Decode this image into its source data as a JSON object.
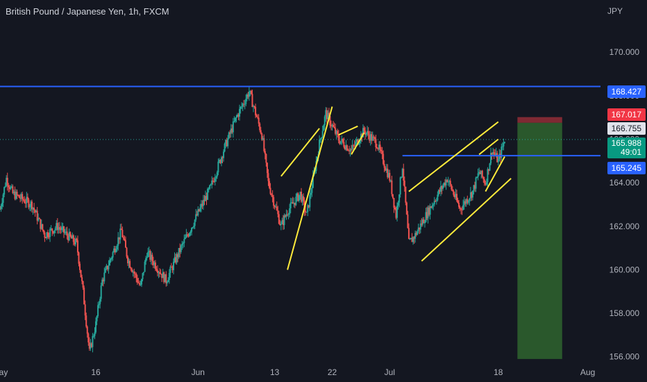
{
  "header": {
    "title": "British Pound / Japanese Yen, 1h, FXCM",
    "currency": "JPY"
  },
  "price_tags": {
    "resistance": "168.427",
    "stop": "167.017",
    "entry": "166.755",
    "last": "165.988",
    "countdown": "49:01",
    "support": "165.245"
  },
  "colors": {
    "background": "#141721",
    "bull": "#26a69a",
    "bear": "#ef5350",
    "pattern": "#ffeb3b",
    "level": "#2962ff",
    "target_zone": "#2c5f2e",
    "stop_zone": "#8b2b35"
  },
  "chart_data": {
    "type": "candlestick",
    "symbol": "British Pound / Japanese Yen",
    "interval": "1h",
    "source": "FXCM",
    "y_axis": {
      "unit": "JPY",
      "ticks": [
        "156.000",
        "158.000",
        "160.000",
        "162.000",
        "164.000",
        "166.000",
        "168.000",
        "170.000"
      ],
      "ylim": [
        155.8,
        172.4
      ]
    },
    "x_axis": {
      "ticks": [
        "May",
        "16",
        "Jun",
        "13",
        "22",
        "Jul",
        "18",
        "Aug"
      ],
      "xlim": [
        "2024-05-01",
        "2024-08-03"
      ]
    },
    "price_path": [
      [
        "2024-05-01",
        162.8
      ],
      [
        "2024-05-02",
        164.2
      ],
      [
        "2024-05-03",
        163.5
      ],
      [
        "2024-05-06",
        163.0
      ],
      [
        "2024-05-08",
        161.6
      ],
      [
        "2024-05-10",
        162.0
      ],
      [
        "2024-05-13",
        161.2
      ],
      [
        "2024-05-14",
        159.0
      ],
      [
        "2024-05-15",
        156.2
      ],
      [
        "2024-05-16",
        157.5
      ],
      [
        "2024-05-17",
        159.5
      ],
      [
        "2024-05-20",
        161.8
      ],
      [
        "2024-05-21",
        160.5
      ],
      [
        "2024-05-23",
        159.2
      ],
      [
        "2024-05-24",
        160.8
      ],
      [
        "2024-05-27",
        159.5
      ],
      [
        "2024-05-29",
        160.8
      ],
      [
        "2024-05-31",
        162.0
      ],
      [
        "2024-06-03",
        163.8
      ],
      [
        "2024-06-05",
        165.5
      ],
      [
        "2024-06-07",
        167.0
      ],
      [
        "2024-06-09",
        168.2
      ],
      [
        "2024-06-10",
        167.2
      ],
      [
        "2024-06-11",
        166.2
      ],
      [
        "2024-06-12",
        164.0
      ],
      [
        "2024-06-14",
        162.0
      ],
      [
        "2024-06-15",
        162.7
      ],
      [
        "2024-06-17",
        163.5
      ],
      [
        "2024-06-18",
        162.5
      ],
      [
        "2024-06-20",
        165.8
      ],
      [
        "2024-06-21",
        167.2
      ],
      [
        "2024-06-23",
        166.0
      ],
      [
        "2024-06-25",
        165.5
      ],
      [
        "2024-06-27",
        166.4
      ],
      [
        "2024-06-29",
        165.8
      ],
      [
        "2024-07-01",
        164.2
      ],
      [
        "2024-07-02",
        162.5
      ],
      [
        "2024-07-03",
        164.8
      ],
      [
        "2024-07-04",
        161.2
      ],
      [
        "2024-07-05",
        161.6
      ],
      [
        "2024-07-08",
        163.2
      ],
      [
        "2024-07-10",
        164.2
      ],
      [
        "2024-07-12",
        162.8
      ],
      [
        "2024-07-14",
        163.6
      ],
      [
        "2024-07-15",
        164.5
      ],
      [
        "2024-07-16",
        164.0
      ],
      [
        "2024-07-17",
        165.5
      ],
      [
        "2024-07-18",
        165.0
      ],
      [
        "2024-07-19",
        165.988
      ]
    ],
    "horizontal_levels": [
      {
        "price": 168.427,
        "label": "168.427"
      },
      {
        "price": 165.245,
        "label": "165.245",
        "from": "2024-07-03"
      }
    ],
    "current_price": {
      "price": 165.988,
      "label": "165.988",
      "countdown": "49:01"
    },
    "patterns": [
      {
        "type": "rising-wedge",
        "lines": [
          {
            "from": [
              "2024-06-14",
              164.3
            ],
            "to": [
              "2024-06-20",
              166.5
            ]
          },
          {
            "from": [
              "2024-06-15",
              160.0
            ],
            "to": [
              "2024-06-22",
              167.5
            ]
          }
        ]
      },
      {
        "type": "rising-wedge",
        "lines": [
          {
            "from": [
              "2024-06-23",
              166.2
            ],
            "to": [
              "2024-06-26",
              166.6
            ]
          },
          {
            "from": [
              "2024-06-25",
              165.3
            ],
            "to": [
              "2024-06-27",
              166.3
            ]
          }
        ]
      },
      {
        "type": "rising-wedge",
        "lines": [
          {
            "from": [
              "2024-07-04",
              163.6
            ],
            "to": [
              "2024-07-18",
              166.8
            ]
          },
          {
            "from": [
              "2024-07-06",
              160.4
            ],
            "to": [
              "2024-07-20",
              164.2
            ]
          }
        ]
      },
      {
        "type": "rising-wedge",
        "lines": [
          {
            "from": [
              "2024-07-15",
              165.3
            ],
            "to": [
              "2024-07-18",
              166.0
            ]
          },
          {
            "from": [
              "2024-07-16",
              163.6
            ],
            "to": [
              "2024-07-19",
              165.2
            ]
          }
        ]
      }
    ],
    "short_position": {
      "from": "2024-07-21",
      "to": "2024-07-28",
      "entry": 166.755,
      "stop": 167.017,
      "target": 155.9
    }
  }
}
